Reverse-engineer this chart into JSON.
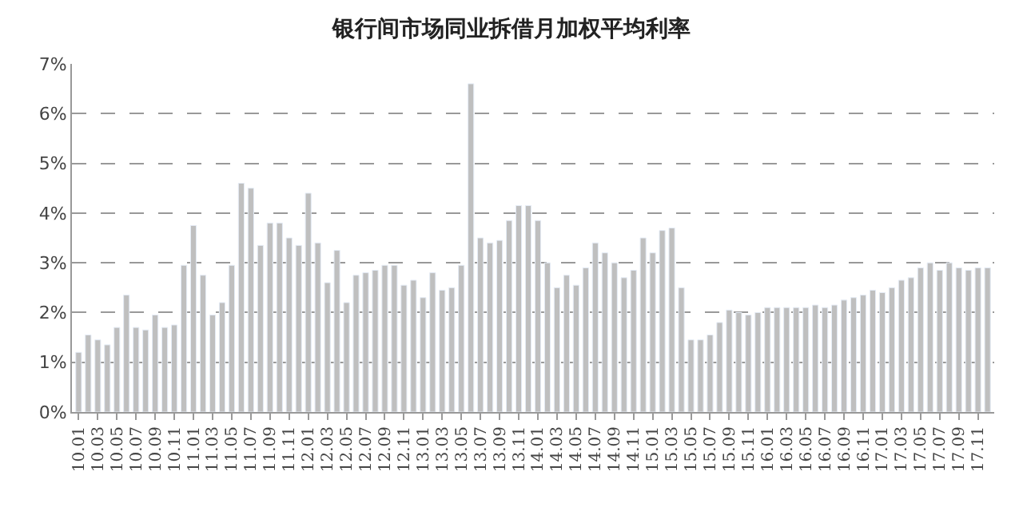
{
  "chart_data": {
    "type": "bar",
    "title": "银行间市场同业拆借月加权平均利率",
    "categories": [
      "10.01",
      null,
      "10.03",
      null,
      "10.05",
      null,
      "10.07",
      null,
      "10.09",
      null,
      "10.11",
      null,
      "11.01",
      null,
      "11.03",
      null,
      "11.05",
      null,
      "11.07",
      null,
      "11.09",
      null,
      "11.11",
      null,
      "12.01",
      null,
      "12.03",
      null,
      "12.05",
      null,
      "12.07",
      null,
      "12.09",
      null,
      "12.11",
      null,
      "13.01",
      null,
      "13.03",
      null,
      "13.05",
      null,
      "13.07",
      null,
      "13.09",
      null,
      "13.11",
      null,
      "14.01",
      null,
      "14.03",
      null,
      "14.05",
      null,
      "14.07",
      null,
      "14.09",
      null,
      "14.11",
      null,
      "15.01",
      null,
      "15.03",
      null,
      "15.05",
      null,
      "15.07",
      null,
      "15.09",
      null,
      "15.11",
      null,
      "16.01",
      null,
      "16.03",
      null,
      "16.05",
      null,
      "16.07",
      null,
      "16.09",
      null,
      "16.11",
      null,
      "17.01",
      null,
      "17.03",
      null,
      "17.05",
      null,
      "17.07",
      null,
      "17.09",
      null,
      "17.11",
      null
    ],
    "values": [
      1.2,
      1.55,
      1.45,
      1.35,
      1.7,
      2.35,
      1.7,
      1.65,
      1.95,
      1.7,
      1.75,
      2.95,
      3.75,
      2.75,
      1.95,
      2.2,
      2.95,
      4.6,
      4.5,
      3.35,
      3.8,
      3.8,
      3.5,
      3.35,
      4.4,
      3.4,
      2.6,
      3.25,
      2.2,
      2.75,
      2.8,
      2.85,
      2.95,
      2.95,
      2.55,
      2.65,
      2.3,
      2.8,
      2.45,
      2.5,
      2.95,
      6.6,
      3.5,
      3.4,
      3.45,
      3.85,
      4.15,
      4.15,
      3.85,
      3.0,
      2.5,
      2.75,
      2.55,
      2.9,
      3.4,
      3.2,
      3.0,
      2.7,
      2.85,
      3.5,
      3.2,
      3.65,
      3.7,
      2.5,
      1.45,
      1.45,
      1.55,
      1.8,
      2.05,
      2.0,
      1.95,
      2.0,
      2.1,
      2.1,
      2.1,
      2.1,
      2.1,
      2.15,
      2.1,
      2.15,
      2.25,
      2.3,
      2.35,
      2.45,
      2.4,
      2.5,
      2.65,
      2.7,
      2.9,
      3.0,
      2.85,
      3.0,
      2.9,
      2.85,
      2.9,
      2.9
    ],
    "color": "#bfbfbf",
    "ylim": [
      0,
      7
    ],
    "yticks": [
      {
        "value": 0,
        "label": "0%"
      },
      {
        "value": 1,
        "label": "1%"
      },
      {
        "value": 2,
        "label": "2%"
      },
      {
        "value": 3,
        "label": "3%"
      },
      {
        "value": 4,
        "label": "4%"
      },
      {
        "value": 5,
        "label": "5%"
      },
      {
        "value": 6,
        "label": "6%"
      },
      {
        "value": 7,
        "label": "7%"
      }
    ],
    "grid": "y"
  }
}
